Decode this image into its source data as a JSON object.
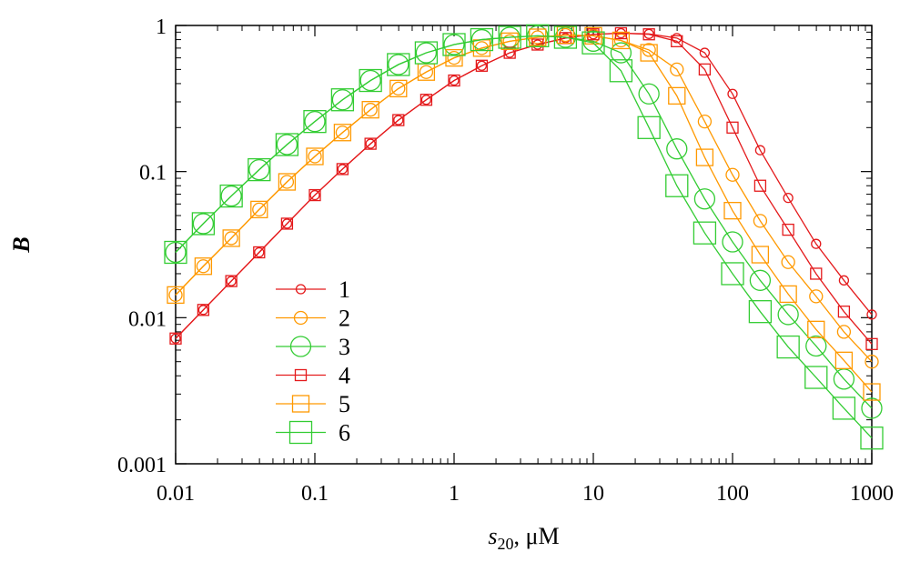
{
  "chart_data": {
    "type": "line",
    "title": "",
    "xlabel": {
      "base": "s",
      "sub": "20",
      "suffix": ", μM"
    },
    "ylabel": "B",
    "xscale": "log",
    "yscale": "log",
    "xlim": [
      0.01,
      1000
    ],
    "ylim": [
      0.001,
      1
    ],
    "xticks": [
      0.01,
      0.1,
      1,
      10,
      100,
      1000
    ],
    "xtick_labels": [
      "0.01",
      "0.1",
      "1",
      "10",
      "100",
      "1000"
    ],
    "yticks": [
      0.001,
      0.01,
      0.1,
      1
    ],
    "ytick_labels": [
      "0.001",
      "0.01",
      "0.1",
      "1"
    ],
    "legend_position": "lower-left",
    "x": [
      0.01,
      0.0158,
      0.0251,
      0.0398,
      0.0631,
      0.1,
      0.158,
      0.251,
      0.398,
      0.631,
      1,
      1.58,
      2.51,
      3.98,
      6.31,
      10,
      15.8,
      25.1,
      39.8,
      63.1,
      100,
      158,
      251,
      398,
      631,
      1000
    ],
    "series": [
      {
        "name": "1",
        "color": "#e41a1c",
        "marker": "circle",
        "size": 5,
        "values": [
          0.0072,
          0.0113,
          0.0178,
          0.028,
          0.044,
          0.069,
          0.104,
          0.155,
          0.225,
          0.31,
          0.42,
          0.53,
          0.65,
          0.74,
          0.82,
          0.87,
          0.885,
          0.875,
          0.82,
          0.65,
          0.34,
          0.14,
          0.066,
          0.032,
          0.018,
          0.0105
        ]
      },
      {
        "name": "2",
        "color": "#ff9900",
        "marker": "circle",
        "size": 7,
        "values": [
          0.0143,
          0.0225,
          0.035,
          0.055,
          0.085,
          0.127,
          0.185,
          0.265,
          0.37,
          0.48,
          0.6,
          0.7,
          0.78,
          0.83,
          0.86,
          0.85,
          0.79,
          0.68,
          0.5,
          0.22,
          0.095,
          0.046,
          0.024,
          0.014,
          0.008,
          0.005
        ]
      },
      {
        "name": "3",
        "color": "#33cc33",
        "marker": "circle",
        "size": 11,
        "values": [
          0.028,
          0.044,
          0.068,
          0.103,
          0.153,
          0.22,
          0.31,
          0.42,
          0.54,
          0.65,
          0.74,
          0.8,
          0.83,
          0.85,
          0.83,
          0.78,
          0.65,
          0.34,
          0.143,
          0.065,
          0.033,
          0.018,
          0.0105,
          0.0064,
          0.0038,
          0.0024
        ]
      },
      {
        "name": "4",
        "color": "#e41a1c",
        "marker": "square",
        "size": 6,
        "values": [
          0.0072,
          0.0113,
          0.0178,
          0.028,
          0.044,
          0.069,
          0.104,
          0.155,
          0.225,
          0.31,
          0.42,
          0.53,
          0.65,
          0.74,
          0.82,
          0.87,
          0.885,
          0.87,
          0.78,
          0.5,
          0.2,
          0.08,
          0.04,
          0.02,
          0.011,
          0.0066
        ]
      },
      {
        "name": "5",
        "color": "#ff9900",
        "marker": "square",
        "size": 9,
        "values": [
          0.0143,
          0.0225,
          0.035,
          0.055,
          0.085,
          0.127,
          0.185,
          0.265,
          0.37,
          0.48,
          0.6,
          0.7,
          0.78,
          0.83,
          0.86,
          0.85,
          0.79,
          0.65,
          0.33,
          0.125,
          0.054,
          0.027,
          0.0145,
          0.0083,
          0.0051,
          0.0031
        ]
      },
      {
        "name": "6",
        "color": "#33cc33",
        "marker": "square",
        "size": 12,
        "values": [
          0.028,
          0.044,
          0.068,
          0.103,
          0.153,
          0.22,
          0.31,
          0.42,
          0.54,
          0.65,
          0.74,
          0.8,
          0.83,
          0.85,
          0.83,
          0.76,
          0.49,
          0.2,
          0.08,
          0.038,
          0.02,
          0.011,
          0.0063,
          0.0039,
          0.0024,
          0.0015
        ]
      }
    ]
  }
}
